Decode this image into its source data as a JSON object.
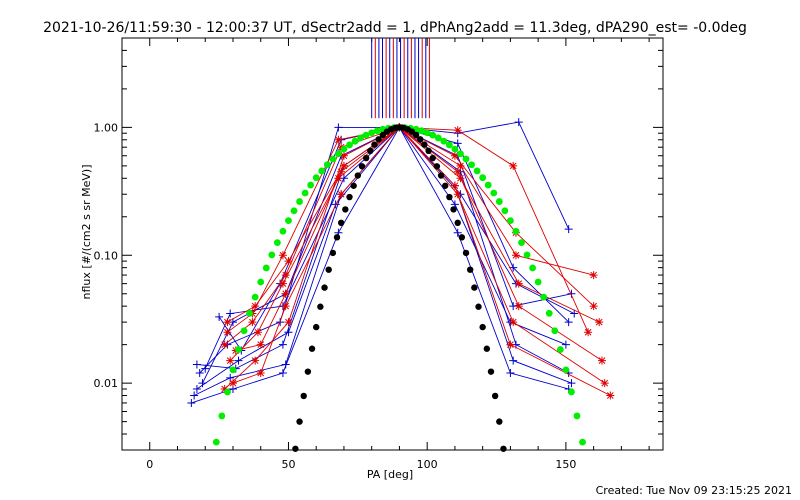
{
  "chart_data": {
    "type": "scatter",
    "title": "2021-10-26/11:59:30 - 12:00:37 UT, dSectr2add = 1, dPhAng2add = 11.3deg, dPA290_est= -0.0deg",
    "xlabel": "PA [deg]",
    "ylabel": "nflux [#/(cm2 s sr MeV)]",
    "xlim": [
      -10,
      185
    ],
    "ylim": [
      0.003,
      5
    ],
    "yscale": "log",
    "x_ticks": [
      "0",
      "50",
      "100",
      "150"
    ],
    "y_ticks": [
      "0.01",
      "0.10",
      "1.00"
    ],
    "footer": "Created: Tue Nov 09 23:15:25 2021",
    "colors": {
      "blue": "#0000cc",
      "red": "#dd0000",
      "green": "#00ee00",
      "black": "#000000"
    },
    "series": [
      {
        "color": "blue",
        "marker": "plus",
        "lines": [
          [
            [
              15,
              0.007
            ],
            [
              30,
              0.009
            ],
            [
              48,
              0.012
            ],
            [
              68,
              0.15
            ],
            [
              90,
              1.0
            ],
            [
              111,
              0.15
            ],
            [
              130,
              0.012
            ],
            [
              151,
              0.009
            ]
          ],
          [
            [
              16,
              0.008
            ],
            [
              29,
              0.011
            ],
            [
              49,
              0.014
            ],
            [
              69,
              0.3
            ],
            [
              90,
              1.0
            ],
            [
              110,
              0.35
            ],
            [
              131,
              0.015
            ],
            [
              152,
              0.01
            ]
          ],
          [
            [
              17,
              0.014
            ],
            [
              31,
              0.013
            ],
            [
              48,
              0.02
            ],
            [
              70,
              0.5
            ],
            [
              90,
              1.0
            ],
            [
              112,
              0.45
            ],
            [
              132,
              0.02
            ],
            [
              151,
              0.012
            ]
          ],
          [
            [
              18,
              0.012
            ],
            [
              28,
              0.02
            ],
            [
              47,
              0.03
            ],
            [
              68,
              1.0
            ],
            [
              90,
              1.0
            ],
            [
              111,
              0.9
            ],
            [
              133,
              1.1
            ],
            [
              151,
              0.16
            ]
          ],
          [
            [
              19,
              0.01
            ],
            [
              30,
              0.03
            ],
            [
              49,
              0.05
            ],
            [
              69,
              0.6
            ],
            [
              90,
              1.0
            ],
            [
              111,
              0.6
            ],
            [
              131,
              0.04
            ],
            [
              152,
              0.05
            ]
          ],
          [
            [
              20,
              0.013
            ],
            [
              29,
              0.035
            ],
            [
              48,
              0.04
            ],
            [
              70,
              0.4
            ],
            [
              90,
              1.0
            ],
            [
              112,
              0.3
            ],
            [
              132,
              0.06
            ],
            [
              153,
              0.035
            ]
          ],
          [
            [
              17,
              0.009
            ],
            [
              32,
              0.015
            ],
            [
              50,
              0.025
            ],
            [
              67,
              0.25
            ],
            [
              90,
              1.0
            ],
            [
              110,
              0.25
            ],
            [
              130,
              0.03
            ],
            [
              150,
              0.02
            ]
          ],
          [
            [
              25,
              0.033
            ],
            [
              33,
              0.018
            ],
            [
              47,
              0.06
            ],
            [
              69,
              0.8
            ],
            [
              90,
              1.0
            ],
            [
              111,
              0.75
            ],
            [
              131,
              0.08
            ],
            [
              151,
              0.03
            ]
          ]
        ]
      },
      {
        "color": "red",
        "marker": "star",
        "lines": [
          [
            [
              27,
              0.02
            ],
            [
              37,
              0.03
            ],
            [
              49,
              0.07
            ],
            [
              69,
              0.7
            ],
            [
              90,
              1.0
            ],
            [
              111,
              0.95
            ],
            [
              131,
              0.5
            ],
            [
              158,
              0.025
            ]
          ],
          [
            [
              28,
              0.03
            ],
            [
              38,
              0.04
            ],
            [
              50,
              0.09
            ],
            [
              70,
              0.5
            ],
            [
              90,
              1.0
            ],
            [
              110,
              0.6
            ],
            [
              132,
              0.15
            ],
            [
              160,
              0.04
            ]
          ],
          [
            [
              29,
              0.015
            ],
            [
              39,
              0.025
            ],
            [
              48,
              0.06
            ],
            [
              68,
              0.4
            ],
            [
              90,
              1.0
            ],
            [
              112,
              0.4
            ],
            [
              133,
              0.06
            ],
            [
              162,
              0.03
            ]
          ],
          [
            [
              30,
              0.01
            ],
            [
              40,
              0.012
            ],
            [
              49,
              0.04
            ],
            [
              69,
              0.3
            ],
            [
              90,
              1.0
            ],
            [
              111,
              0.3
            ],
            [
              131,
              0.03
            ],
            [
              164,
              0.01
            ]
          ],
          [
            [
              27,
              0.009
            ],
            [
              38,
              0.015
            ],
            [
              50,
              0.03
            ],
            [
              70,
              0.6
            ],
            [
              90,
              1.0
            ],
            [
              110,
              0.35
            ],
            [
              130,
              0.02
            ],
            [
              166,
              0.008
            ]
          ],
          [
            [
              28,
              0.025
            ],
            [
              37,
              0.035
            ],
            [
              48,
              0.1
            ],
            [
              68,
              0.8
            ],
            [
              90,
              1.0
            ],
            [
              112,
              0.5
            ],
            [
              132,
              0.1
            ],
            [
              160,
              0.07
            ]
          ],
          [
            [
              31,
              0.018
            ],
            [
              40,
              0.02
            ],
            [
              49,
              0.05
            ],
            [
              69,
              0.45
            ],
            [
              90,
              1.0
            ],
            [
              111,
              0.45
            ],
            [
              133,
              0.04
            ],
            [
              163,
              0.015
            ]
          ]
        ]
      }
    ],
    "green_curve": {
      "color": "green",
      "x_start": 20,
      "x_end": 160,
      "step": 2,
      "power": 6.3
    },
    "black_curve": {
      "color": "black",
      "x_start": 36,
      "x_end": 144,
      "step": 1.5,
      "power": 25
    },
    "spikes": {
      "x_min": 80,
      "x_max": 101,
      "y_top": 5,
      "y_bottom": 1.18
    }
  }
}
